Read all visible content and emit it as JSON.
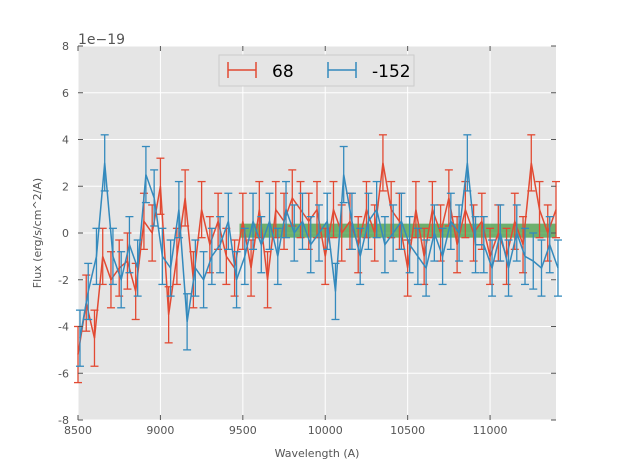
{
  "chart_data": {
    "type": "line",
    "title": "",
    "xlabel": "Wavelength (A)",
    "ylabel": "Flux (erg/s/cm^2/A)",
    "offset_label": "1e−19",
    "xlim": [
      8500,
      11400
    ],
    "ylim": [
      -8,
      8
    ],
    "xticks": [
      8500,
      9000,
      9500,
      10000,
      10500,
      11000
    ],
    "yticks": [
      -8,
      -6,
      -4,
      -2,
      0,
      2,
      4,
      6,
      8
    ],
    "grid": true,
    "legend_position": "top-center",
    "band": {
      "x": [
        9480,
        11400
      ],
      "y": [
        -0.2,
        0.4
      ],
      "color": "#3a9a3a"
    },
    "x": [
      8500,
      8550,
      8600,
      8650,
      8700,
      8750,
      8800,
      8850,
      8900,
      8950,
      9000,
      9050,
      9100,
      9150,
      9200,
      9250,
      9300,
      9350,
      9400,
      9450,
      9500,
      9550,
      9600,
      9650,
      9700,
      9750,
      9800,
      9850,
      9900,
      9950,
      10000,
      10050,
      10100,
      10150,
      10200,
      10250,
      10300,
      10350,
      10400,
      10450,
      10500,
      10550,
      10600,
      10650,
      10700,
      10750,
      10800,
      10850,
      10900,
      10950,
      11000,
      11050,
      11100,
      11150,
      11200,
      11250,
      11300,
      11350,
      11400
    ],
    "series": [
      {
        "name": "68",
        "color": "#e24a33",
        "yerr": 1.2,
        "values": [
          -5.2,
          -3,
          -4.5,
          -1,
          -2,
          -1.5,
          -1.2,
          -2.5,
          0.5,
          0,
          2,
          -3.5,
          -1,
          1.5,
          -2,
          1,
          -0.5,
          0.5,
          -1,
          -1.5,
          0.5,
          -1.5,
          1,
          -2,
          1,
          0.5,
          1.5,
          1,
          0.5,
          1,
          -1,
          1,
          0,
          0.5,
          -0.5,
          1,
          0,
          3,
          1,
          0.5,
          -1.5,
          1,
          -1,
          1,
          0,
          1.5,
          -0.5,
          1,
          0,
          0.5,
          -1,
          0,
          -1,
          0.5,
          -0.5,
          3,
          1,
          0,
          1
        ]
      },
      {
        "name": "-152",
        "color": "#348abd",
        "yerr": 1.2,
        "values": [
          -4.5,
          -2.5,
          -1,
          3,
          -1,
          -2,
          -0.5,
          -1.5,
          2.5,
          1.5,
          -1,
          -1.5,
          1,
          -3.8,
          -1.5,
          -2,
          -1,
          -0.5,
          0.5,
          -2,
          -1,
          0.5,
          -0.5,
          0.5,
          -1,
          1,
          0,
          0.5,
          -0.5,
          0,
          0.5,
          -2.5,
          2.5,
          0.5,
          -1,
          0.5,
          1,
          -0.5,
          0,
          0.5,
          -0.5,
          -1,
          -1.5,
          0,
          -1,
          0.5,
          0,
          3,
          -0.5,
          -0.5,
          -1.5,
          0,
          -1.5,
          0,
          -1,
          -1.2,
          -1.5,
          -0.5,
          -1.5
        ]
      }
    ]
  }
}
